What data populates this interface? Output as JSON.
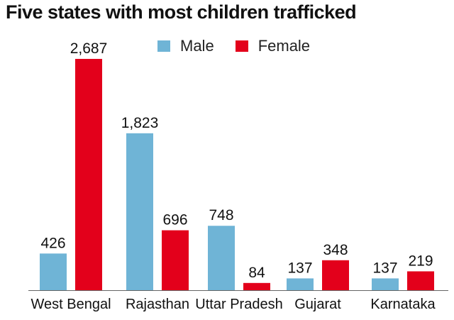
{
  "chart_data": {
    "type": "bar",
    "title": "Five states with most children trafficked",
    "xlabel": "",
    "ylabel": "",
    "categories": [
      "West Bengal",
      "Rajasthan",
      "Uttar Pradesh",
      "Gujarat",
      "Karnataka"
    ],
    "series": [
      {
        "name": "Male",
        "values": [
          426,
          1823,
          748,
          137,
          137
        ],
        "labels": [
          "426",
          "1,823",
          "748",
          "137",
          "137"
        ],
        "color": "#6fb4d6"
      },
      {
        "name": "Female",
        "values": [
          2687,
          696,
          84,
          348,
          219
        ],
        "labels": [
          "2,687",
          "696",
          "84",
          "348",
          "219"
        ],
        "color": "#e3001b"
      }
    ],
    "ylim": [
      0,
      2687
    ],
    "grid": false,
    "legend_position": "top"
  }
}
